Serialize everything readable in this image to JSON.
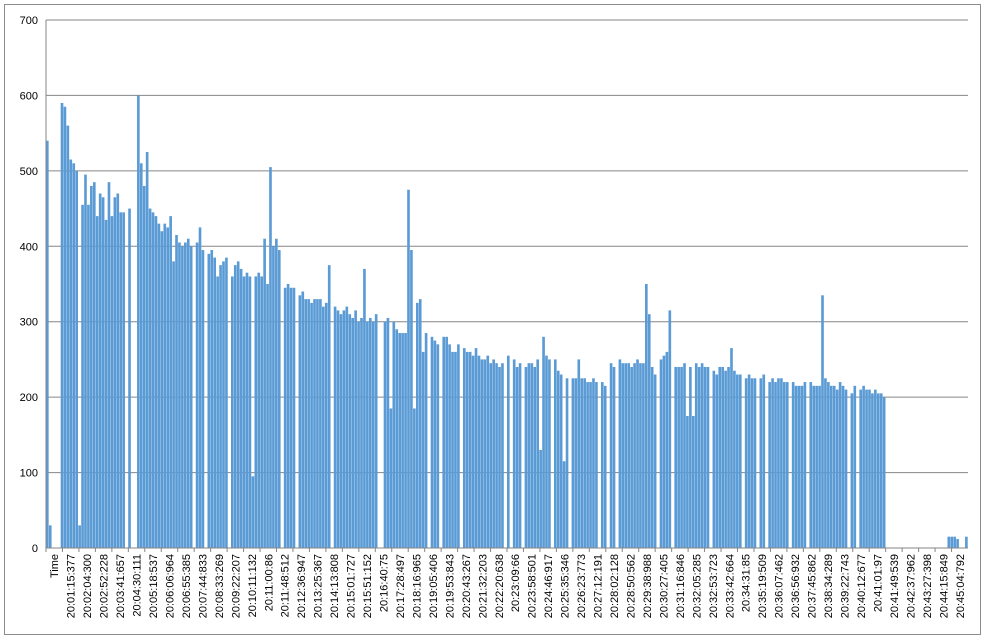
{
  "chart_data": {
    "type": "bar",
    "title": "",
    "xlabel": "",
    "ylabel": "",
    "ylim": [
      0,
      700
    ],
    "y_ticks": [
      0,
      100,
      200,
      300,
      400,
      500,
      600,
      700
    ],
    "grid": true,
    "legend": "none",
    "bar_color": "#5b9bd5",
    "grid_color": "#868686",
    "x_tick_labels": [
      "Time",
      "20:01:15:377",
      "20:02:04:300",
      "20:02:52:228",
      "20:03:41:657",
      "20:04:30:111",
      "20:05:18:537",
      "20:06:06:964",
      "20:06:55:385",
      "20:07:44:833",
      "20:08:33:269",
      "20:09:22:207",
      "20:10:11:132",
      "20:11:00:86",
      "20:11:48:512",
      "20:12:36:947",
      "20:13:25:367",
      "20:14:13:808",
      "20:15:01:727",
      "20:15:51:152",
      "20:16:40:75",
      "20:17:28:497",
      "20:18:16:965",
      "20:19:05:406",
      "20:19:53:843",
      "20:20:43:267",
      "20:21:32:203",
      "20:22:20:638",
      "20:23:09:66",
      "20:23:58:501",
      "20:24:46:917",
      "20:25:35:346",
      "20:26:23:773",
      "20:27:12:191",
      "20:28:02:128",
      "20:28:50:562",
      "20:29:38:988",
      "20:30:27:405",
      "20:31:16:846",
      "20:32:05:285",
      "20:32:53:723",
      "20:33:42:664",
      "20:34:31:85",
      "20:35:19:509",
      "20:36:07:462",
      "20:36:56:932",
      "20:37:45:862",
      "20:38:34:289",
      "20:39:22:743",
      "20:40:12:677",
      "20:41:01:97",
      "20:41:49:539",
      "20:42:37:962",
      "20:43:27:398",
      "20:44:15:849",
      "20:45:04:792"
    ],
    "values": [
      540,
      30,
      0,
      0,
      0,
      590,
      585,
      560,
      515,
      510,
      500,
      30,
      455,
      495,
      455,
      480,
      485,
      440,
      470,
      465,
      435,
      485,
      440,
      465,
      470,
      445,
      445,
      0,
      450,
      0,
      0,
      600,
      510,
      480,
      525,
      450,
      445,
      440,
      430,
      420,
      430,
      425,
      440,
      380,
      415,
      405,
      400,
      405,
      410,
      400,
      0,
      405,
      425,
      395,
      0,
      390,
      395,
      385,
      360,
      375,
      380,
      385,
      0,
      360,
      375,
      380,
      370,
      360,
      365,
      360,
      95,
      360,
      365,
      360,
      410,
      350,
      505,
      400,
      410,
      395,
      0,
      345,
      350,
      345,
      345,
      0,
      335,
      340,
      330,
      330,
      325,
      330,
      330,
      330,
      320,
      325,
      375,
      0,
      320,
      315,
      310,
      315,
      320,
      310,
      305,
      315,
      300,
      305,
      370,
      300,
      305,
      300,
      310,
      0,
      0,
      300,
      305,
      185,
      300,
      290,
      285,
      285,
      285,
      475,
      395,
      185,
      325,
      330,
      260,
      285,
      0,
      280,
      275,
      270,
      0,
      280,
      280,
      270,
      260,
      260,
      270,
      0,
      265,
      260,
      260,
      255,
      265,
      255,
      250,
      250,
      255,
      245,
      250,
      245,
      240,
      245,
      0,
      255,
      0,
      250,
      240,
      245,
      0,
      240,
      245,
      245,
      240,
      250,
      130,
      280,
      255,
      250,
      0,
      250,
      235,
      230,
      115,
      225,
      0,
      225,
      225,
      250,
      225,
      225,
      220,
      220,
      225,
      220,
      0,
      220,
      215,
      0,
      245,
      240,
      0,
      250,
      245,
      245,
      245,
      240,
      245,
      250,
      245,
      245,
      350,
      310,
      240,
      230,
      0,
      250,
      255,
      260,
      315,
      0,
      240,
      240,
      240,
      245,
      175,
      240,
      175,
      245,
      240,
      245,
      240,
      240,
      0,
      235,
      230,
      240,
      240,
      235,
      240,
      265,
      235,
      230,
      230,
      0,
      225,
      230,
      225,
      225,
      0,
      225,
      230,
      0,
      220,
      225,
      220,
      225,
      225,
      220,
      220,
      0,
      220,
      215,
      215,
      215,
      220,
      0,
      220,
      215,
      215,
      215,
      335,
      225,
      220,
      215,
      215,
      210,
      220,
      215,
      210,
      0,
      205,
      215,
      0,
      210,
      215,
      210,
      210,
      205,
      210,
      205,
      205,
      200,
      0,
      0,
      0,
      0,
      0,
      0,
      0,
      0,
      0,
      0,
      0,
      0,
      0,
      0,
      0,
      0,
      0,
      0,
      0,
      0,
      0,
      15,
      15,
      15,
      12,
      0,
      0,
      15
    ]
  }
}
